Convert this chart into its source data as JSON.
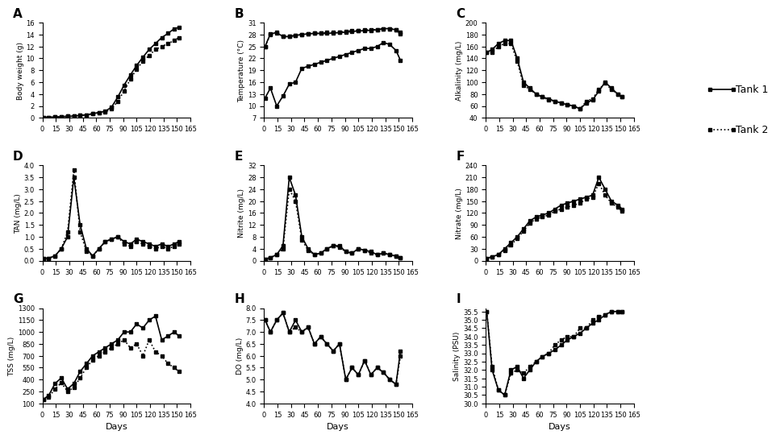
{
  "panel_A": {
    "label": "A",
    "ylabel": "Body weight (g)",
    "ylim": [
      0,
      16.0
    ],
    "yticks": [
      0.0,
      2.0,
      4.0,
      6.0,
      8.0,
      10.0,
      12.0,
      14.0,
      16.0
    ],
    "tank1_x": [
      1,
      7,
      14,
      21,
      28,
      35,
      42,
      49,
      56,
      63,
      70,
      77,
      84,
      91,
      98,
      105,
      112,
      119,
      126,
      133,
      140,
      147,
      152
    ],
    "tank1_y": [
      0.1,
      0.1,
      0.15,
      0.2,
      0.25,
      0.3,
      0.4,
      0.5,
      0.7,
      0.9,
      1.1,
      1.8,
      3.5,
      5.5,
      7.2,
      8.8,
      10.2,
      11.5,
      12.5,
      13.5,
      14.2,
      15.0,
      15.2
    ],
    "tank2_x": [
      1,
      7,
      14,
      21,
      28,
      35,
      42,
      49,
      56,
      63,
      70,
      77,
      84,
      91,
      98,
      105,
      112,
      119,
      126,
      133,
      140,
      147,
      152
    ],
    "tank2_y": [
      0.1,
      0.1,
      0.15,
      0.2,
      0.25,
      0.3,
      0.4,
      0.5,
      0.7,
      0.85,
      1.0,
      1.5,
      2.8,
      4.5,
      6.5,
      8.2,
      9.5,
      10.5,
      11.5,
      12.0,
      12.5,
      13.0,
      13.5
    ]
  },
  "panel_B": {
    "label": "B",
    "ylabel": "Temperature (°C)",
    "ylim": [
      7.0,
      31.0
    ],
    "yticks": [
      7.0,
      10.0,
      13.0,
      16.0,
      19.0,
      22.0,
      25.0,
      28.0,
      31.0
    ],
    "water_tank1_x": [
      1,
      7,
      14,
      21,
      28,
      35,
      42,
      49,
      56,
      63,
      70,
      77,
      84,
      91,
      98,
      105,
      112,
      119,
      126,
      133,
      140,
      147,
      152
    ],
    "water_tank1_y": [
      25.0,
      28.2,
      28.5,
      27.5,
      27.5,
      27.8,
      28.0,
      28.2,
      28.3,
      28.3,
      28.3,
      28.4,
      28.5,
      28.6,
      28.8,
      28.9,
      29.0,
      29.1,
      29.2,
      29.5,
      29.5,
      29.2,
      28.5
    ],
    "water_tank2_x": [
      1,
      7,
      14,
      21,
      28,
      35,
      42,
      49,
      56,
      63,
      70,
      77,
      84,
      91,
      98,
      105,
      112,
      119,
      126,
      133,
      140,
      147,
      152
    ],
    "water_tank2_y": [
      25.0,
      28.0,
      28.3,
      27.5,
      27.5,
      27.8,
      28.0,
      28.2,
      28.3,
      28.3,
      28.5,
      28.5,
      28.6,
      28.8,
      29.0,
      29.0,
      29.2,
      29.2,
      29.3,
      29.5,
      29.5,
      29.2,
      28.2
    ],
    "air_x": [
      1,
      7,
      14,
      21,
      28,
      35,
      42,
      49,
      56,
      63,
      70,
      77,
      84,
      91,
      98,
      105,
      112,
      119,
      126,
      133,
      140,
      147,
      152
    ],
    "air_y": [
      12.0,
      14.5,
      10.0,
      12.5,
      15.5,
      16.0,
      19.5,
      20.0,
      20.5,
      21.0,
      21.5,
      22.0,
      22.5,
      23.0,
      23.5,
      24.0,
      24.5,
      24.5,
      25.0,
      26.0,
      25.5,
      24.0,
      21.5
    ]
  },
  "panel_C": {
    "label": "C",
    "ylabel": "Alkalinity (mg/L)",
    "ylim": [
      40.0,
      200.0
    ],
    "yticks": [
      40.0,
      60.0,
      80.0,
      100.0,
      120.0,
      140.0,
      160.0,
      180.0,
      200.0
    ],
    "tank1_x": [
      1,
      7,
      14,
      21,
      28,
      35,
      42,
      49,
      56,
      63,
      70,
      77,
      84,
      91,
      98,
      105,
      112,
      119,
      126,
      133,
      140,
      147,
      152
    ],
    "tank1_y": [
      150.0,
      155.0,
      165.0,
      170.0,
      170.0,
      140.0,
      100.0,
      90.0,
      80.0,
      75.0,
      72.0,
      68.0,
      65.0,
      62.0,
      60.0,
      55.0,
      65.0,
      70.0,
      85.0,
      100.0,
      90.0,
      80.0,
      75.0
    ],
    "tank2_x": [
      1,
      7,
      14,
      21,
      28,
      35,
      42,
      49,
      56,
      63,
      70,
      77,
      84,
      91,
      98,
      105,
      112,
      119,
      126,
      133,
      140,
      147,
      152
    ],
    "tank2_y": [
      150.0,
      150.0,
      160.0,
      165.0,
      165.0,
      135.0,
      95.0,
      88.0,
      80.0,
      75.0,
      70.0,
      68.0,
      65.0,
      62.0,
      60.0,
      55.0,
      68.0,
      72.0,
      88.0,
      98.0,
      88.0,
      80.0,
      75.0
    ]
  },
  "panel_D": {
    "label": "D",
    "ylabel": "TAN (mg/L)",
    "ylim": [
      0.0,
      4.0
    ],
    "yticks": [
      0.0,
      0.5,
      1.0,
      1.5,
      2.0,
      2.5,
      3.0,
      3.5,
      4.0
    ],
    "tank1_x": [
      1,
      7,
      14,
      21,
      28,
      35,
      42,
      49,
      56,
      63,
      70,
      77,
      84,
      91,
      98,
      105,
      112,
      119,
      126,
      133,
      140,
      147,
      152
    ],
    "tank1_y": [
      0.1,
      0.1,
      0.2,
      0.5,
      1.0,
      3.5,
      1.5,
      0.5,
      0.2,
      0.5,
      0.8,
      0.9,
      1.0,
      0.8,
      0.7,
      0.9,
      0.8,
      0.7,
      0.6,
      0.7,
      0.6,
      0.7,
      0.8
    ],
    "tank2_x": [
      1,
      7,
      14,
      21,
      28,
      35,
      42,
      49,
      56,
      63,
      70,
      77,
      84,
      91,
      98,
      105,
      112,
      119,
      126,
      133,
      140,
      147,
      152
    ],
    "tank2_y": [
      0.1,
      0.1,
      0.2,
      0.5,
      1.2,
      3.8,
      1.2,
      0.4,
      0.2,
      0.5,
      0.8,
      0.9,
      1.0,
      0.7,
      0.6,
      0.8,
      0.7,
      0.6,
      0.5,
      0.6,
      0.5,
      0.6,
      0.7
    ]
  },
  "panel_E": {
    "label": "E",
    "ylabel": "Nitrite (mg/L)",
    "ylim": [
      0.0,
      32.0
    ],
    "yticks": [
      0.0,
      4.0,
      8.0,
      12.0,
      16.0,
      20.0,
      24.0,
      28.0,
      32.0
    ],
    "tank1_x": [
      1,
      7,
      14,
      21,
      28,
      35,
      42,
      49,
      56,
      63,
      70,
      77,
      84,
      91,
      98,
      105,
      112,
      119,
      126,
      133,
      140,
      147,
      152
    ],
    "tank1_y": [
      0.5,
      1.0,
      2.0,
      5.0,
      28.0,
      22.0,
      8.0,
      4.0,
      2.0,
      2.5,
      4.0,
      5.0,
      5.0,
      3.0,
      2.5,
      4.0,
      3.5,
      3.0,
      2.0,
      2.5,
      2.0,
      1.5,
      1.0
    ],
    "tank2_x": [
      1,
      7,
      14,
      21,
      28,
      35,
      42,
      49,
      56,
      63,
      70,
      77,
      84,
      91,
      98,
      105,
      112,
      119,
      126,
      133,
      140,
      147,
      152
    ],
    "tank2_y": [
      0.5,
      1.0,
      2.0,
      4.0,
      24.0,
      20.0,
      7.0,
      3.5,
      2.0,
      2.5,
      4.0,
      5.0,
      4.5,
      3.0,
      2.5,
      4.0,
      3.5,
      2.5,
      2.0,
      2.5,
      2.0,
      1.5,
      1.0
    ]
  },
  "panel_F": {
    "label": "F",
    "ylabel": "Nitrate (mg/L)",
    "ylim": [
      0.0,
      240.0
    ],
    "yticks": [
      0.0,
      30.0,
      60.0,
      90.0,
      120.0,
      150.0,
      180.0,
      210.0,
      240.0
    ],
    "tank1_x": [
      1,
      7,
      14,
      21,
      28,
      35,
      42,
      49,
      56,
      63,
      70,
      77,
      84,
      91,
      98,
      105,
      112,
      119,
      126,
      133,
      140,
      147,
      152
    ],
    "tank1_y": [
      5.0,
      10.0,
      15.0,
      30.0,
      45.0,
      60.0,
      80.0,
      100.0,
      110.0,
      115.0,
      120.0,
      130.0,
      140.0,
      145.0,
      150.0,
      155.0,
      160.0,
      165.0,
      210.0,
      180.0,
      150.0,
      140.0,
      130.0
    ],
    "tank2_x": [
      1,
      7,
      14,
      21,
      28,
      35,
      42,
      49,
      56,
      63,
      70,
      77,
      84,
      91,
      98,
      105,
      112,
      119,
      126,
      133,
      140,
      147,
      152
    ],
    "tank2_y": [
      5.0,
      10.0,
      15.0,
      25.0,
      40.0,
      55.0,
      75.0,
      95.0,
      105.0,
      110.0,
      115.0,
      125.0,
      130.0,
      135.0,
      140.0,
      145.0,
      155.0,
      160.0,
      195.0,
      165.0,
      145.0,
      135.0,
      125.0
    ]
  },
  "panel_G": {
    "label": "G",
    "ylabel": "TSS (mg/L)",
    "ylim": [
      100.0,
      1300.0
    ],
    "yticks": [
      100.0,
      250.0,
      400.0,
      550.0,
      700.0,
      850.0,
      1000.0,
      1150.0,
      1300.0
    ],
    "tank1_x": [
      1,
      7,
      14,
      21,
      28,
      35,
      42,
      49,
      56,
      63,
      70,
      77,
      84,
      91,
      98,
      105,
      112,
      119,
      126,
      133,
      140,
      147,
      152
    ],
    "tank1_y": [
      150.0,
      200.0,
      350.0,
      420.0,
      280.0,
      350.0,
      500.0,
      600.0,
      700.0,
      750.0,
      800.0,
      850.0,
      900.0,
      1000.0,
      1000.0,
      1100.0,
      1050.0,
      1150.0,
      1200.0,
      900.0,
      950.0,
      1000.0,
      950.0
    ],
    "tank2_x": [
      1,
      7,
      14,
      21,
      28,
      35,
      42,
      49,
      56,
      63,
      70,
      77,
      84,
      91,
      98,
      105,
      112,
      119,
      126,
      133,
      140,
      147,
      152
    ],
    "tank2_y": [
      150.0,
      180.0,
      280.0,
      360.0,
      250.0,
      300.0,
      420.0,
      550.0,
      650.0,
      700.0,
      750.0,
      800.0,
      850.0,
      900.0,
      800.0,
      850.0,
      700.0,
      900.0,
      750.0,
      700.0,
      600.0,
      550.0,
      500.0
    ]
  },
  "panel_H": {
    "label": "H",
    "ylabel": "DO (mg/L)",
    "ylim": [
      4.0,
      8.0
    ],
    "yticks": [
      4.0,
      4.5,
      5.0,
      5.5,
      6.0,
      6.5,
      7.0,
      7.5,
      8.0
    ],
    "tank1_x": [
      1,
      7,
      14,
      21,
      28,
      35,
      42,
      49,
      56,
      63,
      70,
      77,
      84,
      91,
      98,
      105,
      112,
      119,
      126,
      133,
      140,
      147,
      152
    ],
    "tank1_y": [
      7.5,
      7.0,
      7.5,
      7.8,
      7.0,
      7.5,
      7.0,
      7.2,
      6.5,
      6.8,
      6.5,
      6.2,
      6.5,
      5.0,
      5.5,
      5.2,
      5.8,
      5.2,
      5.5,
      5.3,
      5.0,
      4.8,
      6.2
    ],
    "tank2_x": [
      1,
      7,
      14,
      21,
      28,
      35,
      42,
      49,
      56,
      63,
      70,
      77,
      84,
      91,
      98,
      105,
      112,
      119,
      126,
      133,
      140,
      147,
      152
    ],
    "tank2_y": [
      7.5,
      7.0,
      7.5,
      7.8,
      7.0,
      7.2,
      7.0,
      7.2,
      6.5,
      6.8,
      6.5,
      6.2,
      6.5,
      5.0,
      5.5,
      5.2,
      5.8,
      5.2,
      5.5,
      5.3,
      5.0,
      4.8,
      6.0
    ]
  },
  "panel_I": {
    "label": "I",
    "ylabel": "Salinity (PSU)",
    "ylim": [
      30.0,
      35.7
    ],
    "yticks": [
      30.0,
      30.5,
      31.0,
      31.5,
      32.0,
      32.5,
      33.0,
      33.5,
      34.0,
      34.5,
      35.0,
      35.5
    ],
    "tank1_x": [
      1,
      7,
      14,
      21,
      28,
      35,
      42,
      49,
      56,
      63,
      70,
      77,
      84,
      91,
      98,
      105,
      112,
      119,
      126,
      133,
      140,
      147,
      152
    ],
    "tank1_y": [
      35.5,
      32.0,
      30.8,
      30.5,
      32.0,
      32.2,
      31.5,
      32.0,
      32.5,
      32.8,
      33.0,
      33.2,
      33.5,
      33.8,
      34.0,
      34.2,
      34.5,
      34.8,
      35.0,
      35.3,
      35.5,
      35.5,
      35.5
    ],
    "tank2_x": [
      1,
      7,
      14,
      21,
      28,
      35,
      42,
      49,
      56,
      63,
      70,
      77,
      84,
      91,
      98,
      105,
      112,
      119,
      126,
      133,
      140,
      147,
      152
    ],
    "tank2_y": [
      35.5,
      32.2,
      30.8,
      30.5,
      31.8,
      32.0,
      31.8,
      32.2,
      32.5,
      32.8,
      33.0,
      33.5,
      33.8,
      34.0,
      34.0,
      34.5,
      34.5,
      35.0,
      35.2,
      35.3,
      35.5,
      35.5,
      35.5
    ]
  },
  "xticks": [
    0,
    15,
    30,
    45,
    60,
    75,
    90,
    105,
    120,
    135,
    150,
    165
  ],
  "xlim": [
    0,
    165
  ],
  "xlabel": "Days",
  "legend_tank1": "Tank 1",
  "legend_tank2": "Tank 2"
}
